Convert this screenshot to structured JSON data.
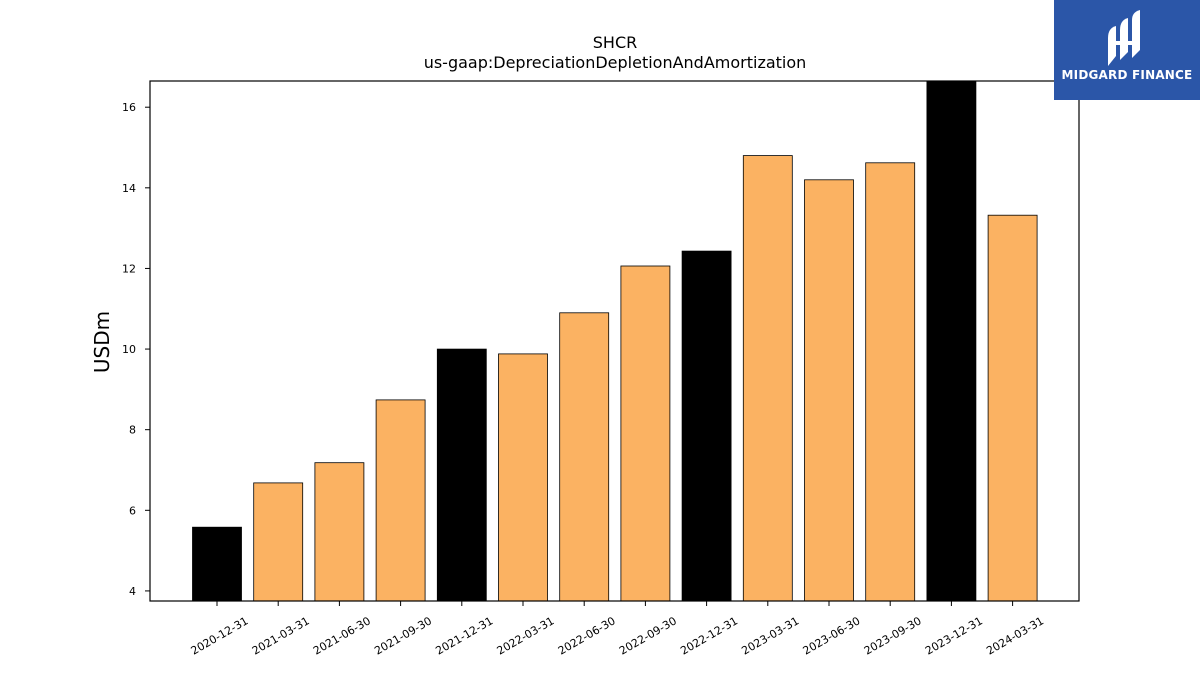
{
  "chart_data": {
    "type": "bar",
    "title": "SHCR",
    "subtitle": "us-gaap:DepreciationDepletionAndAmortization",
    "xlabel": "",
    "ylabel": "USDm",
    "ylim": [
      3.75,
      16.65
    ],
    "yticks": [
      4,
      6,
      8,
      10,
      12,
      14,
      16
    ],
    "categories": [
      "2020-12-31",
      "2021-03-31",
      "2021-06-30",
      "2021-09-30",
      "2021-12-31",
      "2022-03-31",
      "2022-06-30",
      "2022-09-30",
      "2022-12-31",
      "2023-03-31",
      "2023-06-30",
      "2023-09-30",
      "2023-12-31",
      "2024-03-31"
    ],
    "values": [
      5.58,
      6.68,
      7.18,
      8.74,
      10.0,
      9.88,
      10.9,
      12.06,
      12.43,
      14.8,
      14.2,
      14.62,
      16.7,
      13.32
    ],
    "colors": [
      "#000000",
      "#fbb262",
      "#fbb262",
      "#fbb262",
      "#000000",
      "#fbb262",
      "#fbb262",
      "#fbb262",
      "#000000",
      "#fbb262",
      "#fbb262",
      "#fbb262",
      "#000000",
      "#fbb262"
    ],
    "grid": false
  },
  "logo": {
    "brand_text": "MIDGARD FINANCE",
    "icon": "midgard-logo-icon"
  }
}
